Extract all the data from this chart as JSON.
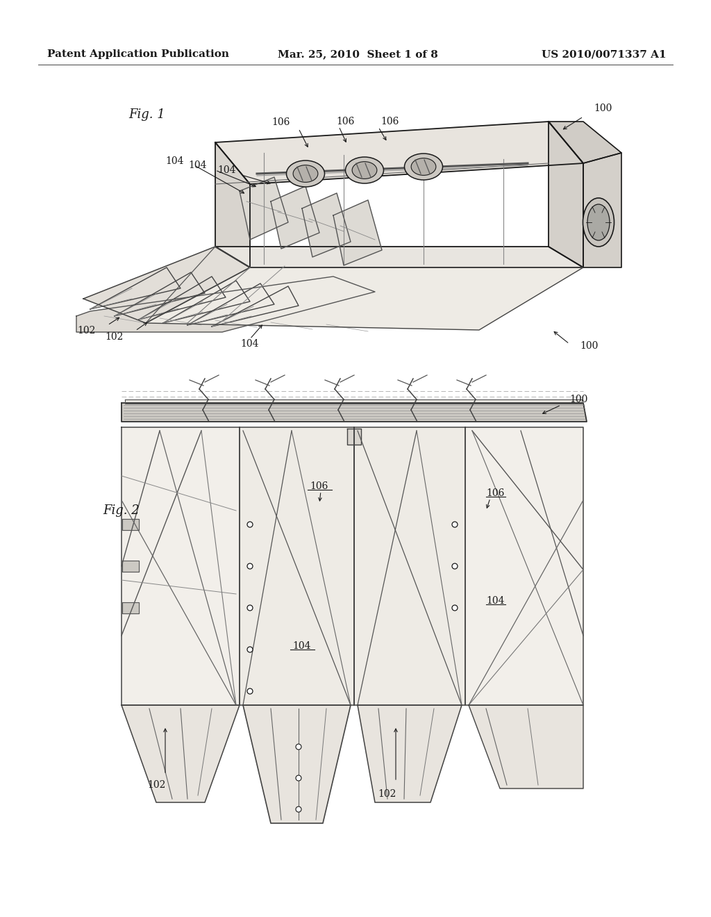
{
  "background_color": "#ffffff",
  "header_left": "Patent Application Publication",
  "header_center": "Mar. 25, 2010  Sheet 1 of 8",
  "header_right": "US 2010/0071337 A1",
  "header_fontsize": 11,
  "fig1_label": "Fig. 1",
  "fig2_label": "Fig. 2",
  "text_color": "#1a1a1a",
  "line_color": "#1a1a1a",
  "fill_light": "#e8e5e0",
  "fill_mid": "#d4d0ca",
  "fill_dark": "#b8b4ae"
}
